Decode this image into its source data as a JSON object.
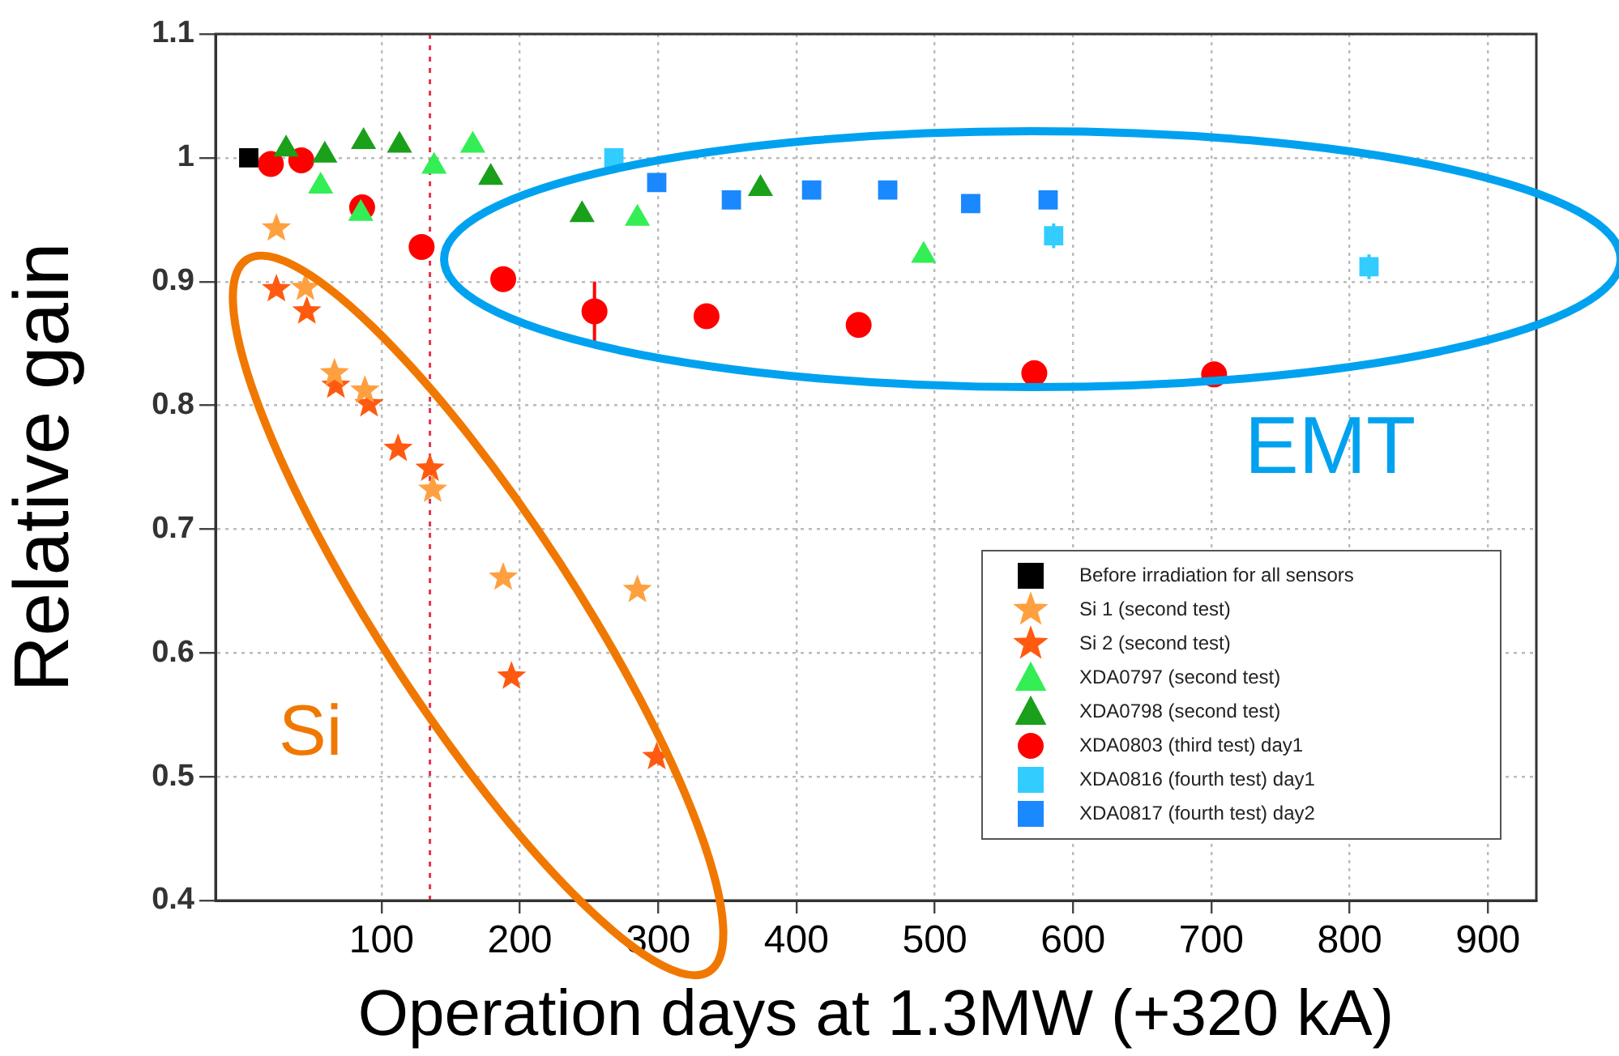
{
  "chart_data": {
    "type": "scatter",
    "xlabel": "Operation days at 1.3MW (+320 kA)",
    "ylabel": "Relative gain",
    "xlim": [
      -20,
      935
    ],
    "xticks": [
      100,
      200,
      300,
      400,
      500,
      600,
      700,
      800,
      900
    ],
    "ylim": [
      0.4,
      1.1
    ],
    "yticks": [
      0.4,
      0.5,
      0.6,
      0.7,
      0.8,
      0.9,
      1,
      1.1
    ],
    "grid": true,
    "legend": "bottom right",
    "ref_lines": [
      {
        "axis": "x",
        "value": 135,
        "color": "#e8334a",
        "line_style": "dotted"
      }
    ],
    "annotations": [
      "Si",
      "EMT"
    ],
    "series": [
      {
        "name": "Before irradiation for all sensors",
        "color": "#000000",
        "marker": "square",
        "x": [
          4
        ],
        "values": [
          1.0
        ]
      },
      {
        "name": "Si 1 (second test)",
        "color": "#ffa040",
        "marker": "star",
        "x": [
          24,
          45,
          66,
          88,
          137,
          188,
          285
        ],
        "values": [
          0.943,
          0.895,
          0.826,
          0.812,
          0.732,
          0.661,
          0.651
        ]
      },
      {
        "name": "Si 2 (second test)",
        "color": "#ff5a10",
        "marker": "star",
        "x": [
          24,
          46,
          67,
          91,
          112,
          135,
          194,
          299
        ],
        "values": [
          0.894,
          0.876,
          0.816,
          0.801,
          0.765,
          0.749,
          0.581,
          0.516
        ]
      },
      {
        "name": "XDA0797 (second test)",
        "color": "#33ee55",
        "marker": "triangle",
        "x": [
          56,
          85,
          138,
          166,
          285,
          492
        ],
        "values": [
          0.977,
          0.955,
          0.993,
          1.01,
          0.951,
          0.921
        ]
      },
      {
        "name": "XDA0798 (second test)",
        "color": "#1aa01a",
        "marker": "triangle",
        "x": [
          31,
          59,
          87,
          113,
          179,
          245,
          374
        ],
        "values": [
          1.007,
          1.002,
          1.013,
          1.01,
          0.984,
          0.954,
          0.975
        ]
      },
      {
        "name": "XDA0803 (third test) day1",
        "color": "#ff0000",
        "marker": "circle",
        "x": [
          20,
          42,
          86,
          129,
          188,
          254,
          335,
          445,
          572,
          702
        ],
        "values": [
          0.995,
          0.998,
          0.96,
          0.928,
          0.902,
          0.876,
          0.872,
          0.865,
          0.826,
          0.825
        ],
        "errors": [
          null,
          null,
          null,
          null,
          null,
          [
            0.852,
            0.9
          ],
          null,
          null,
          null,
          null
        ]
      },
      {
        "name": "XDA0816 (fourth test) day1",
        "color": "#33ccff",
        "marker": "square",
        "x": [
          268,
          586,
          814
        ],
        "values": [
          1.0,
          0.937,
          0.912
        ],
        "errors": [
          null,
          [
            0.927,
            0.947
          ],
          [
            0.902,
            0.922
          ]
        ]
      },
      {
        "name": "XDA0817 (fourth test) day2",
        "color": "#1a88ff",
        "marker": "square",
        "x": [
          299,
          353,
          411,
          466,
          526,
          582
        ],
        "values": [
          0.98,
          0.966,
          0.974,
          0.974,
          0.963,
          0.966
        ]
      }
    ]
  }
}
